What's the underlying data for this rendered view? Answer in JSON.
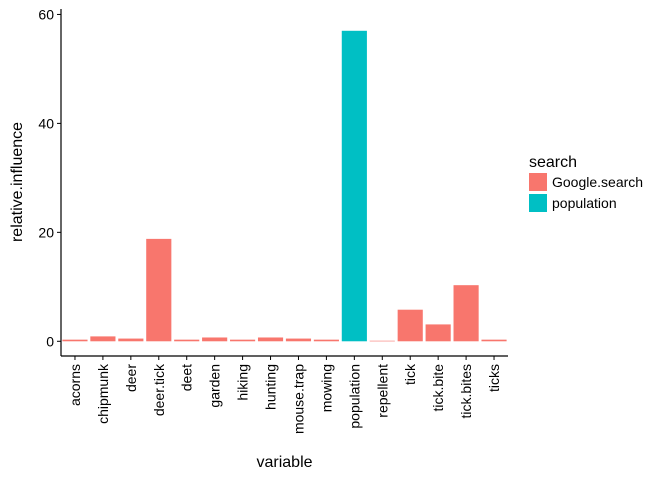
{
  "chart_data": {
    "type": "bar",
    "xlabel": "variable",
    "ylabel": "relative.influence",
    "ylim": [
      -2.7,
      61
    ],
    "y_ticks": [
      0,
      20,
      40,
      60
    ],
    "legend": {
      "title": "search",
      "placement": "right",
      "entries": [
        {
          "name": "Google.search",
          "color": "#F8766D"
        },
        {
          "name": "population",
          "color": "#00BFC4"
        }
      ]
    },
    "categories": [
      "acorns",
      "chipmunk",
      "deer",
      "deer.tick",
      "deet",
      "garden",
      "hiking",
      "hunting",
      "mouse.trap",
      "mowing",
      "population",
      "repellent",
      "tick",
      "tick.bite",
      "tick.bites",
      "ticks"
    ],
    "values": [
      0.3,
      0.9,
      0.5,
      18.8,
      0.3,
      0.7,
      0.3,
      0.7,
      0.5,
      0.3,
      57.0,
      0.1,
      5.8,
      3.1,
      10.3,
      0.3
    ],
    "groups": [
      "Google.search",
      "Google.search",
      "Google.search",
      "Google.search",
      "Google.search",
      "Google.search",
      "Google.search",
      "Google.search",
      "Google.search",
      "Google.search",
      "population",
      "Google.search",
      "Google.search",
      "Google.search",
      "Google.search",
      "Google.search"
    ],
    "grid": false
  }
}
